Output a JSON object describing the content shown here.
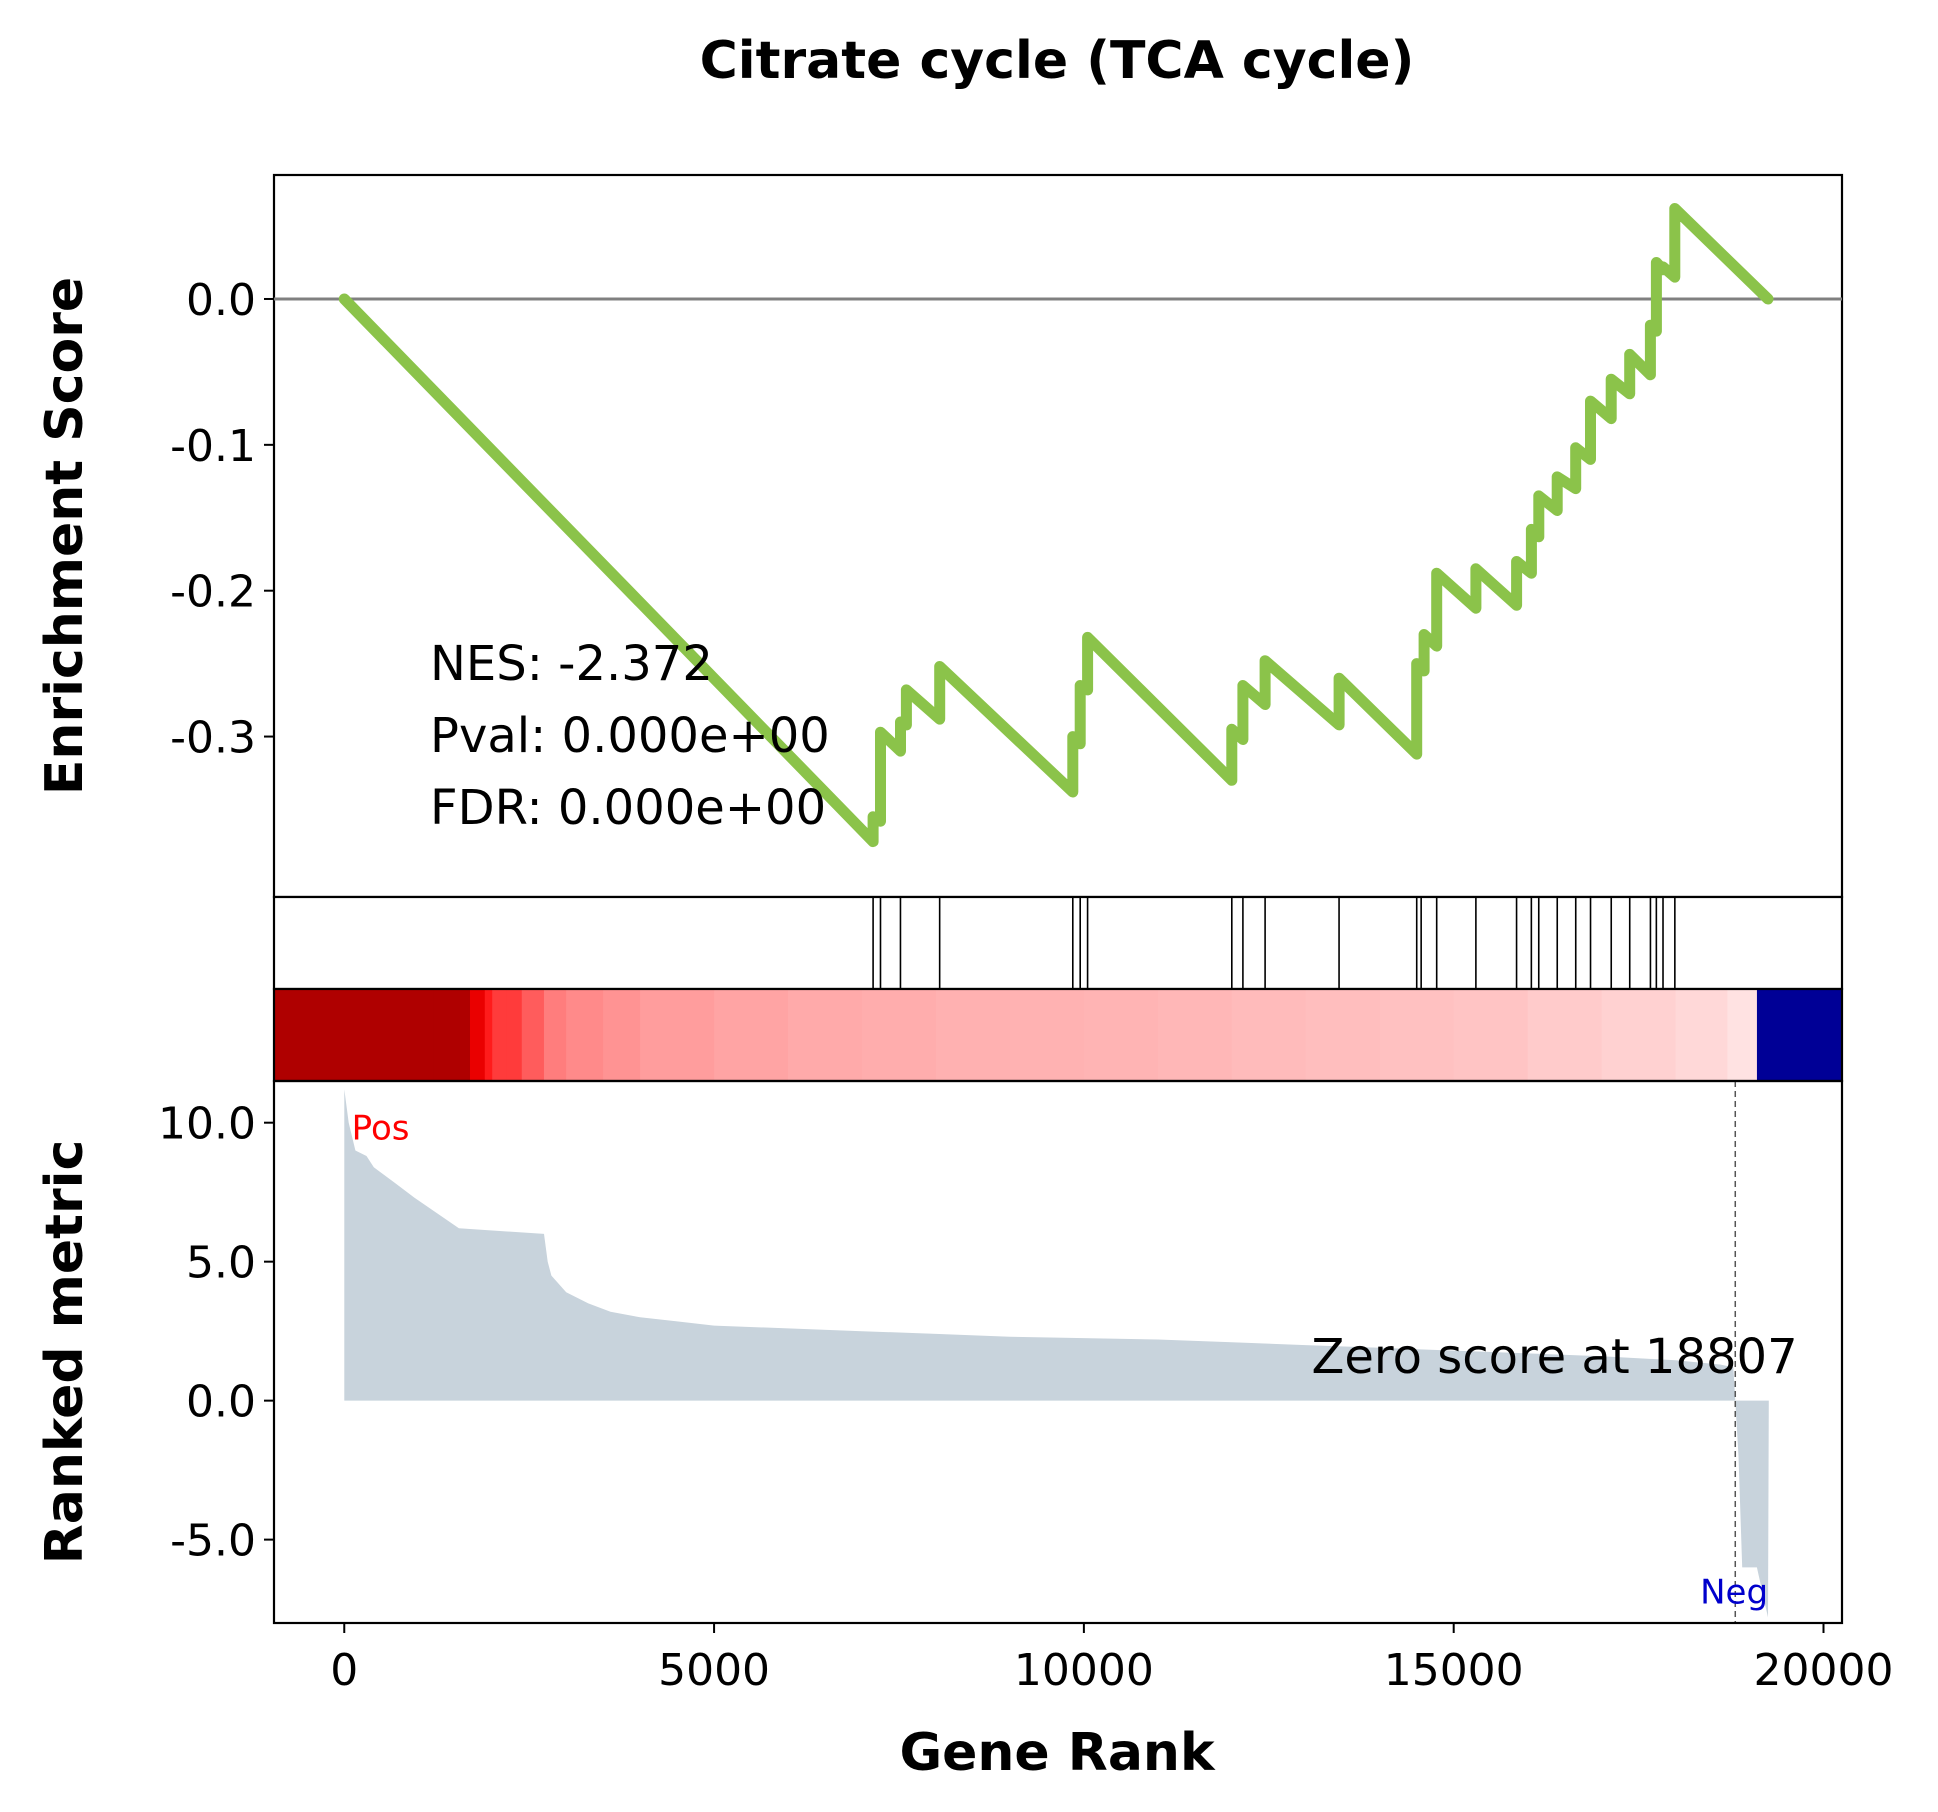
{
  "chart_data": {
    "title": "Citrate cycle (TCA cycle)",
    "xlabel": "Gene Rank",
    "xlim": [
      -950,
      20250
    ],
    "x_ticks": [
      0,
      5000,
      10000,
      15000,
      20000
    ],
    "x_tick_labels": [
      "0",
      "5000",
      "10000",
      "15000",
      "20000"
    ],
    "colors": {
      "es_line": "#8bc34a",
      "zero_line": "#808080",
      "metric_fill": "#c8d3dc",
      "pos_label": "#ff0000",
      "neg_label": "#0000cc",
      "hit_line": "#000000"
    },
    "panels": [
      {
        "type": "line",
        "name": "enrichment",
        "ylabel": "Enrichment Score",
        "ylim": [
          -0.41,
          0.085
        ],
        "y_ticks": [
          0.0,
          -0.1,
          -0.2,
          -0.3
        ],
        "y_tick_labels": [
          "0.0",
          "-0.1",
          "-0.2",
          "-0.3"
        ],
        "zero_line": true,
        "annotations": [
          "NES: -2.372",
          "Pval: 0.000e+00",
          "FDR: 0.000e+00"
        ],
        "points": [
          [
            0,
            0.0
          ],
          [
            7150,
            -0.372
          ],
          [
            7150,
            -0.355
          ],
          [
            7250,
            -0.358
          ],
          [
            7250,
            -0.297
          ],
          [
            7520,
            -0.31
          ],
          [
            7520,
            -0.29
          ],
          [
            7600,
            -0.292
          ],
          [
            7600,
            -0.268
          ],
          [
            8050,
            -0.288
          ],
          [
            8050,
            -0.252
          ],
          [
            9850,
            -0.338
          ],
          [
            9850,
            -0.3
          ],
          [
            9950,
            -0.305
          ],
          [
            9950,
            -0.265
          ],
          [
            10050,
            -0.268
          ],
          [
            10050,
            -0.232
          ],
          [
            12000,
            -0.33
          ],
          [
            12000,
            -0.295
          ],
          [
            12150,
            -0.302
          ],
          [
            12150,
            -0.265
          ],
          [
            12450,
            -0.278
          ],
          [
            12450,
            -0.248
          ],
          [
            13450,
            -0.292
          ],
          [
            13450,
            -0.26
          ],
          [
            14500,
            -0.312
          ],
          [
            14500,
            -0.25
          ],
          [
            14600,
            -0.255
          ],
          [
            14600,
            -0.23
          ],
          [
            14770,
            -0.238
          ],
          [
            14770,
            -0.188
          ],
          [
            15300,
            -0.212
          ],
          [
            15300,
            -0.185
          ],
          [
            15850,
            -0.21
          ],
          [
            15850,
            -0.18
          ],
          [
            16050,
            -0.188
          ],
          [
            16050,
            -0.158
          ],
          [
            16150,
            -0.163
          ],
          [
            16150,
            -0.135
          ],
          [
            16400,
            -0.145
          ],
          [
            16400,
            -0.122
          ],
          [
            16650,
            -0.13
          ],
          [
            16650,
            -0.102
          ],
          [
            16850,
            -0.11
          ],
          [
            16850,
            -0.07
          ],
          [
            17130,
            -0.082
          ],
          [
            17130,
            -0.055
          ],
          [
            17380,
            -0.065
          ],
          [
            17380,
            -0.038
          ],
          [
            17660,
            -0.052
          ],
          [
            17660,
            -0.018
          ],
          [
            17740,
            -0.022
          ],
          [
            17740,
            0.025
          ],
          [
            17830,
            0.02
          ],
          [
            17830,
            0.022
          ],
          [
            17990,
            0.015
          ],
          [
            17990,
            0.062
          ],
          [
            19250,
            0.0
          ]
        ]
      },
      {
        "type": "hits",
        "name": "gene_hits",
        "positions": [
          7150,
          7250,
          7520,
          8050,
          9850,
          9950,
          10050,
          12000,
          12150,
          12450,
          13450,
          14500,
          14560,
          14770,
          15300,
          15850,
          16050,
          16150,
          16400,
          16650,
          16850,
          17130,
          17380,
          17660,
          17740,
          17830,
          17990
        ]
      },
      {
        "type": "heatmap",
        "name": "rank_colormap",
        "x": [
          0,
          1200,
          1700,
          1900,
          2000,
          2200,
          2400,
          2700,
          3000,
          3500,
          4000,
          5000,
          6000,
          7000,
          8000,
          9000,
          10000,
          11000,
          12000,
          13000,
          14000,
          15000,
          16000,
          17000,
          18000,
          18700,
          19100,
          19300
        ],
        "values": [
          11.2,
          9.0,
          8.0,
          7.0,
          6.0,
          6.0,
          5.0,
          4.0,
          3.6,
          3.3,
          3.0,
          2.8,
          2.6,
          2.5,
          2.4,
          2.35,
          2.3,
          2.2,
          2.1,
          2.0,
          1.9,
          1.8,
          1.6,
          1.4,
          1.2,
          0.9,
          -8.0,
          -8.0
        ]
      },
      {
        "type": "area",
        "name": "ranked_metric",
        "ylabel": "Ranked metric",
        "ylim": [
          -8.0,
          11.5
        ],
        "y_ticks": [
          10.0,
          5.0,
          0.0,
          -5.0
        ],
        "y_tick_labels": [
          "10.0",
          "5.0",
          "0.0",
          "-5.0"
        ],
        "pos_label": "Pos",
        "neg_label": "Neg",
        "zero_score_label": "Zero score at 18807",
        "zero_score_rank": 18807,
        "points": [
          [
            0,
            0
          ],
          [
            0,
            11.2
          ],
          [
            60,
            10.0
          ],
          [
            150,
            9.0
          ],
          [
            300,
            8.8
          ],
          [
            400,
            8.4
          ],
          [
            550,
            8.1
          ],
          [
            700,
            7.8
          ],
          [
            950,
            7.3
          ],
          [
            1550,
            6.2
          ],
          [
            2700,
            6.0
          ],
          [
            2750,
            5.0
          ],
          [
            2800,
            4.5
          ],
          [
            3000,
            3.9
          ],
          [
            3300,
            3.5
          ],
          [
            3600,
            3.2
          ],
          [
            4000,
            3.0
          ],
          [
            4500,
            2.85
          ],
          [
            5000,
            2.7
          ],
          [
            6000,
            2.6
          ],
          [
            7000,
            2.5
          ],
          [
            8000,
            2.4
          ],
          [
            9000,
            2.3
          ],
          [
            10000,
            2.25
          ],
          [
            11000,
            2.2
          ],
          [
            12000,
            2.1
          ],
          [
            13000,
            2.0
          ],
          [
            14000,
            1.9
          ],
          [
            15000,
            1.8
          ],
          [
            16000,
            1.7
          ],
          [
            17000,
            1.6
          ],
          [
            18000,
            1.45
          ],
          [
            18600,
            1.3
          ],
          [
            18780,
            1.2
          ],
          [
            18807,
            0
          ],
          [
            18850,
            -2.0
          ],
          [
            18900,
            -6.0
          ],
          [
            19100,
            -6.0
          ],
          [
            19250,
            -7.8
          ],
          [
            19260,
            0
          ]
        ]
      }
    ]
  }
}
